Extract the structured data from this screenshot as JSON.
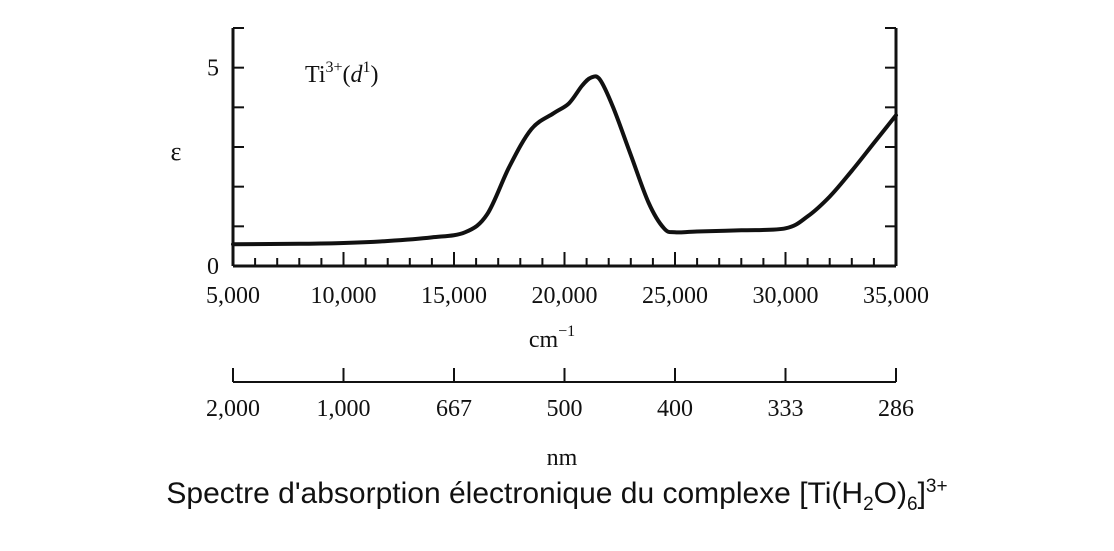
{
  "chart_data": {
    "type": "line",
    "annotation": {
      "ion": "Ti",
      "charge": "3+",
      "d_open": "(",
      "d_letter": "d",
      "d_exp": "1",
      "d_close": ")"
    },
    "ylabel": "ε",
    "xlabel_base": "cm",
    "xlabel_exp": "−1",
    "xlim": [
      5000,
      35000
    ],
    "ylim": [
      0,
      6
    ],
    "y_ticks": [
      0,
      1,
      2,
      3,
      4,
      5,
      6
    ],
    "y_tick_labels": [
      {
        "value": 0,
        "label": "0"
      },
      {
        "value": 5,
        "label": "5"
      }
    ],
    "x_major_ticks": [
      5000,
      10000,
      15000,
      20000,
      25000,
      30000,
      35000
    ],
    "x_tick_labels": [
      "5,000",
      "10,000",
      "15,000",
      "20,000",
      "25,000",
      "30,000",
      "35,000"
    ],
    "x_minor_step": 1000,
    "series": [
      {
        "x": [
          5000,
          8000,
          10000,
          12000,
          14000,
          15500,
          16500,
          17500,
          18500,
          19500,
          20200,
          20800,
          21200,
          21600,
          22200,
          23000,
          23800,
          24500,
          25000,
          26000,
          28000,
          30000,
          31000,
          32000,
          33000,
          34000,
          35000
        ],
        "y": [
          0.55,
          0.56,
          0.58,
          0.63,
          0.72,
          0.85,
          1.3,
          2.5,
          3.45,
          3.85,
          4.1,
          4.55,
          4.75,
          4.7,
          4.0,
          2.8,
          1.6,
          0.95,
          0.85,
          0.87,
          0.9,
          0.95,
          1.25,
          1.75,
          2.4,
          3.1,
          3.8
        ]
      }
    ],
    "nm_axis": {
      "label": "nm",
      "ticks": [
        {
          "wavenumber": 5000,
          "label": "2,000"
        },
        {
          "wavenumber": 10000,
          "label": "1,000"
        },
        {
          "wavenumber": 15000,
          "label": "667"
        },
        {
          "wavenumber": 20000,
          "label": "500"
        },
        {
          "wavenumber": 25000,
          "label": "400"
        },
        {
          "wavenumber": 30000,
          "label": "333"
        },
        {
          "wavenumber": 35000,
          "label": "286"
        }
      ]
    }
  },
  "caption": {
    "text_before": "Spectre d'absorption électronique du complexe [Ti(H",
    "sub1": "2",
    "mid1": "O)",
    "sub2": "6",
    "mid2": "]",
    "sup": "3+"
  }
}
